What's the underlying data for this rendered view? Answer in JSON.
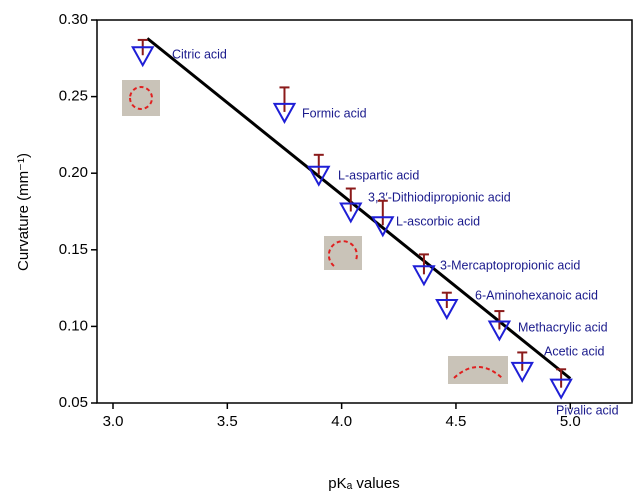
{
  "chart_data": {
    "type": "scatter",
    "x_label": "pKₐ values",
    "y_label": "Curvature (mm⁻¹)",
    "xlim": [
      2.93,
      5.27
    ],
    "ylim": [
      0.05,
      0.3
    ],
    "xticks": [
      {
        "value": 3,
        "label": "3.0"
      },
      3.5,
      {
        "value": 4,
        "label": "4.0"
      },
      4.5,
      {
        "value": 5,
        "label": "5.0"
      }
    ],
    "yticks": [
      {
        "value": 0.05,
        "label": "0.05"
      },
      {
        "value": 0.1,
        "label": "0.10"
      },
      0.15,
      {
        "value": 0.2,
        "label": "0.20"
      },
      0.25,
      {
        "value": 0.3,
        "label": "0.30"
      }
    ],
    "series": [
      {
        "color": "#1f1fd6",
        "error_color": "#8b1a1a",
        "labels": [
          "Citric acid",
          "Formic acid",
          "L-aspartic acid",
          "3,3′-Dithiodipropionic acid",
          "L-ascorbic acid",
          "3-Mercaptopropionic acid",
          "6-Aminohexanoic acid",
          "Methacrylic acid",
          "Acetic acid",
          "Pivalic acid"
        ],
        "x": [
          3.13,
          3.75,
          3.9,
          4.04,
          4.18,
          4.36,
          4.46,
          4.69,
          4.79,
          4.96
        ],
        "values": [
          0.277,
          0.24,
          0.199,
          0.175,
          0.166,
          0.134,
          0.112,
          0.098,
          0.071,
          0.06
        ],
        "errors": [
          0.01,
          0.016,
          0.013,
          0.015,
          0.016,
          0.013,
          0.01,
          0.012,
          0.012,
          0.012
        ]
      }
    ],
    "fit": {
      "color": "#000000",
      "x": [
        3.15,
        5.0
      ],
      "values": [
        0.288,
        0.066
      ]
    }
  }
}
